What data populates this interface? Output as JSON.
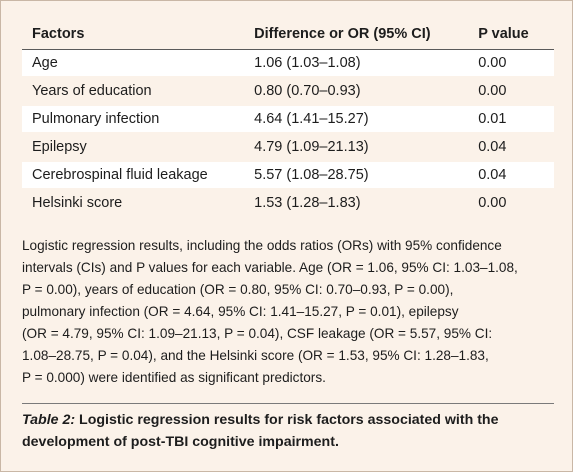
{
  "table": {
    "headers": [
      "Factors",
      "Difference or OR (95% CI)",
      "P value"
    ],
    "rows": [
      {
        "factor": "Age",
        "or": "1.06 (1.03–1.08)",
        "p": "0.00"
      },
      {
        "factor": "Years of education",
        "or": "0.80 (0.70–0.93)",
        "p": "0.00"
      },
      {
        "factor": "Pulmonary infection",
        "or": "4.64 (1.41–15.27)",
        "p": "0.01"
      },
      {
        "factor": "Epilepsy",
        "or": "4.79 (1.09–21.13)",
        "p": "0.04"
      },
      {
        "factor": "Cerebrospinal fluid leakage",
        "or": "5.57 (1.08–28.75)",
        "p": "0.04"
      },
      {
        "factor": "Helsinki score",
        "or": "1.53 (1.28–1.83)",
        "p": "0.00"
      }
    ]
  },
  "caption": {
    "lines": [
      "Logistic regression results, including the odds ratios (ORs) with 95% confidence",
      "intervals (CIs) and P values for each variable. Age (OR = 1.06, 95% CI: 1.03–1.08,",
      "P = 0.00), years of education (OR = 0.80, 95% CI: 0.70–0.93, P = 0.00),",
      "pulmonary infection (OR = 4.64, 95% CI: 1.41–15.27, P = 0.01), epilepsy",
      "(OR = 4.79, 95% CI: 1.09–21.13, P = 0.04), CSF leakage (OR = 5.57, 95% CI:",
      "1.08–28.75, P = 0.04), and the Helsinki score (OR = 1.53, 95% CI: 1.28–1.83,",
      "P = 0.000) were identified as significant predictors."
    ]
  },
  "title": {
    "label": "Table 2:",
    "text": " Logistic regression results for risk factors associated with the development of post-TBI cognitive impairment."
  }
}
